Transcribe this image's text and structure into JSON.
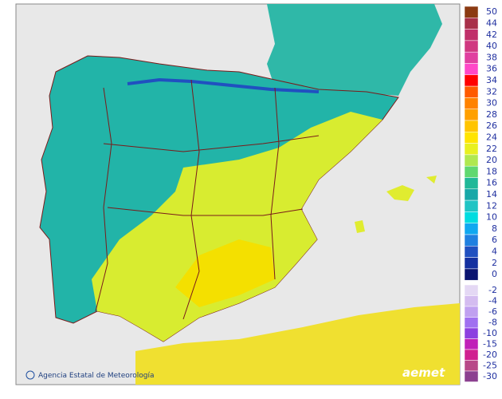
{
  "credit": "Agencia Estatal de Meteorología",
  "logo": "aemet",
  "legend": [
    [
      {
        "value": 50,
        "color": "#8b3a12"
      },
      {
        "value": 44,
        "color": "#a8304a"
      },
      {
        "value": 42,
        "color": "#c0306a"
      },
      {
        "value": 40,
        "color": "#d03880"
      },
      {
        "value": 38,
        "color": "#e040a0"
      },
      {
        "value": 36,
        "color": "#ff48c8"
      },
      {
        "value": 34,
        "color": "#ff0000"
      },
      {
        "value": 32,
        "color": "#ff5a00"
      },
      {
        "value": 30,
        "color": "#ff8200"
      },
      {
        "value": 28,
        "color": "#ffa000"
      },
      {
        "value": 26,
        "color": "#ffc400"
      },
      {
        "value": 24,
        "color": "#ffe400"
      },
      {
        "value": 22,
        "color": "#e8f020"
      },
      {
        "value": 20,
        "color": "#b0e850"
      },
      {
        "value": 18,
        "color": "#60d870"
      },
      {
        "value": 16,
        "color": "#20b898"
      },
      {
        "value": 14,
        "color": "#18a8a8"
      },
      {
        "value": 12,
        "color": "#20c4c4"
      },
      {
        "value": 10,
        "color": "#00dce0"
      },
      {
        "value": 8,
        "color": "#10a8f0"
      },
      {
        "value": 6,
        "color": "#2080e0"
      },
      {
        "value": 4,
        "color": "#2050c0"
      },
      {
        "value": 2,
        "color": "#1430a0"
      },
      {
        "value": 0,
        "color": "#0a1470"
      }
    ],
    [
      {
        "value": -2,
        "color": "#e4d8f4"
      },
      {
        "value": -4,
        "color": "#d4bcf0"
      },
      {
        "value": -6,
        "color": "#c0a0f0"
      },
      {
        "value": -8,
        "color": "#a070f0"
      },
      {
        "value": -10,
        "color": "#8c40e0"
      },
      {
        "value": -15,
        "color": "#c020b8"
      },
      {
        "value": -20,
        "color": "#d02090"
      },
      {
        "value": -25,
        "color": "#b84888"
      },
      {
        "value": -30,
        "color": "#8c4090"
      }
    ]
  ]
}
